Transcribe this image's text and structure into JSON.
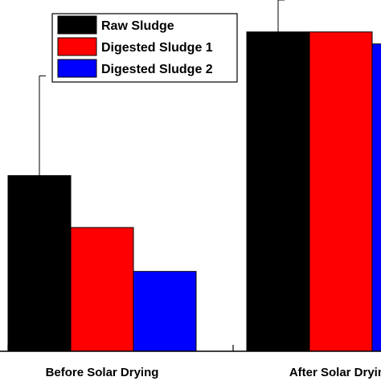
{
  "chart_data": {
    "type": "bar",
    "categories": [
      "Before Solar Drying",
      "After Solar Drying"
    ],
    "series": [
      {
        "name": "Raw Sludge",
        "color": "#000000",
        "values": [
          44,
          80
        ],
        "errors": [
          25,
          8
        ]
      },
      {
        "name": "Digested Sludge 1",
        "color": "#ff0000",
        "values": [
          31,
          80
        ],
        "errors": [
          null,
          null
        ]
      },
      {
        "name": "Digested Sludge 2",
        "color": "#0000ff",
        "values": [
          20,
          77
        ],
        "errors": [
          null,
          null
        ]
      }
    ],
    "title": "",
    "xlabel": "",
    "ylabel": "",
    "ylim": [
      0,
      88
    ],
    "legend_position": "top-left",
    "grid": false
  }
}
